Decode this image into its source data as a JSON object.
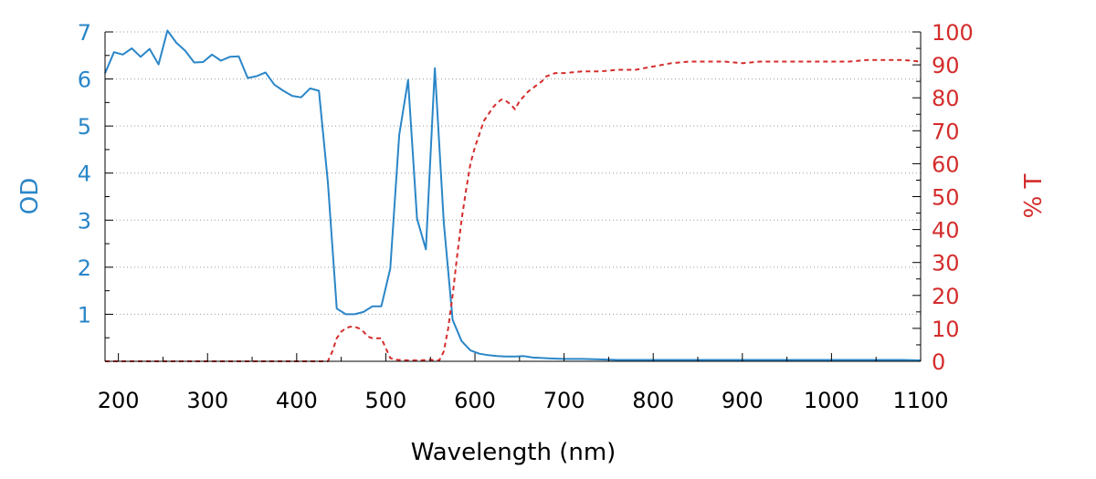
{
  "chart_data": {
    "type": "line",
    "xlabel": "Wavelength (nm)",
    "ylabel_left": "OD",
    "ylabel_right": "% T",
    "xlim": [
      185,
      1100
    ],
    "ylim_left": [
      0,
      7
    ],
    "ylim_right": [
      0,
      100
    ],
    "xticks": [
      "200",
      "300",
      "400",
      "500",
      "600",
      "700",
      "800",
      "900",
      "1000",
      "1100"
    ],
    "yticks_left": [
      "1",
      "2",
      "3",
      "4",
      "5",
      "6",
      "7"
    ],
    "yticks_right": [
      "0",
      "10",
      "20",
      "30",
      "40",
      "50",
      "60",
      "70",
      "80",
      "90",
      "100"
    ],
    "grid": "horizontal dotted",
    "colors": {
      "od": "#2a86c8",
      "transmission": "#d42c2c",
      "axes": "#000000"
    },
    "series": [
      {
        "axis": "left",
        "style": "solid",
        "x": [
          185,
          195,
          205,
          215,
          225,
          235,
          245,
          255,
          265,
          275,
          285,
          295,
          305,
          315,
          325,
          335,
          345,
          355,
          365,
          375,
          385,
          395,
          405,
          415,
          425,
          435,
          445,
          455,
          465,
          475,
          485,
          495,
          505,
          515,
          525,
          535,
          545,
          555,
          565,
          575,
          585,
          595,
          605,
          615,
          625,
          635,
          645,
          655,
          665,
          675,
          685,
          700,
          720,
          740,
          760,
          780,
          800,
          820,
          840,
          860,
          880,
          900,
          920,
          940,
          960,
          980,
          1000,
          1020,
          1040,
          1060,
          1080,
          1100
        ],
        "values": [
          6.12,
          6.57,
          6.52,
          6.65,
          6.47,
          6.64,
          6.31,
          7.03,
          6.77,
          6.6,
          6.35,
          6.36,
          6.52,
          6.39,
          6.47,
          6.48,
          6.02,
          6.06,
          6.14,
          5.88,
          5.75,
          5.64,
          5.61,
          5.8,
          5.75,
          3.8,
          1.12,
          1.0,
          1.0,
          1.05,
          1.17,
          1.17,
          1.97,
          4.81,
          5.98,
          3.03,
          2.38,
          6.23,
          2.95,
          0.88,
          0.43,
          0.23,
          0.16,
          0.13,
          0.11,
          0.1,
          0.1,
          0.11,
          0.08,
          0.07,
          0.06,
          0.05,
          0.05,
          0.04,
          0.03,
          0.03,
          0.03,
          0.03,
          0.03,
          0.03,
          0.03,
          0.03,
          0.03,
          0.03,
          0.03,
          0.03,
          0.03,
          0.03,
          0.03,
          0.03,
          0.03,
          0.02
        ]
      },
      {
        "axis": "right",
        "style": "dashed",
        "x": [
          185,
          435,
          440,
          445,
          450,
          455,
          460,
          465,
          470,
          475,
          480,
          485,
          490,
          495,
          500,
          505,
          510,
          520,
          530,
          540,
          550,
          555,
          560,
          565,
          570,
          575,
          580,
          585,
          590,
          595,
          600,
          605,
          610,
          615,
          620,
          625,
          630,
          635,
          640,
          645,
          650,
          655,
          660,
          665,
          670,
          675,
          680,
          685,
          690,
          695,
          700,
          720,
          740,
          760,
          780,
          800,
          820,
          840,
          860,
          880,
          900,
          920,
          940,
          960,
          980,
          1000,
          1020,
          1040,
          1060,
          1080,
          1100
        ],
        "values": [
          0,
          0,
          3,
          7,
          9,
          10,
          10.5,
          10.5,
          10,
          9,
          7.5,
          7,
          7,
          7,
          4,
          1,
          0.5,
          0.3,
          0.3,
          0.3,
          0.5,
          0.3,
          0.3,
          3,
          10,
          20,
          32,
          43,
          52,
          60,
          65,
          69,
          73,
          75,
          77,
          78.5,
          79.5,
          79,
          78,
          76.5,
          79,
          80.5,
          82,
          83,
          84,
          85,
          86.5,
          87,
          87.5,
          87.5,
          87.5,
          88,
          88,
          88.5,
          88.5,
          89.5,
          90.5,
          91,
          91,
          91,
          90.5,
          91,
          91,
          91,
          91,
          91,
          91,
          91.5,
          91.5,
          91.5,
          91
        ]
      }
    ]
  }
}
